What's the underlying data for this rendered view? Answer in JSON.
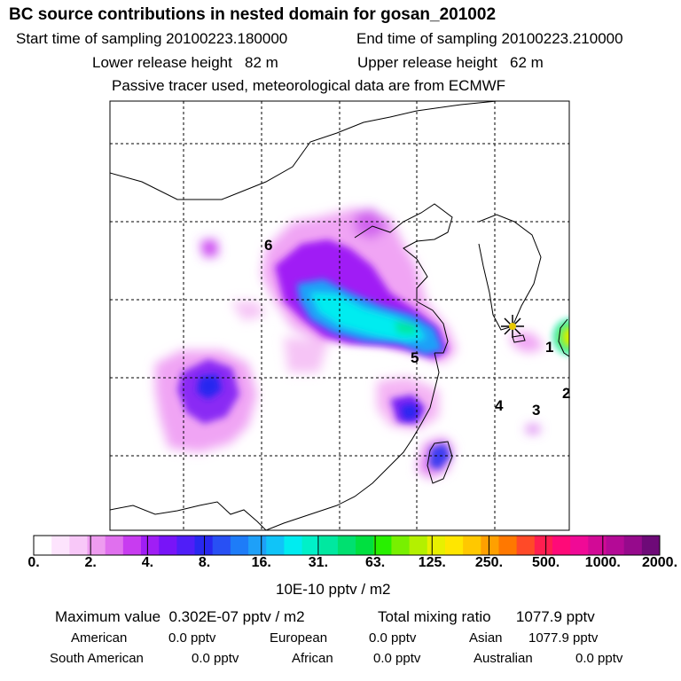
{
  "header": {
    "title": "BC  source contributions in nested domain for gosan_201002",
    "start_label": "Start time of sampling",
    "start_value": "20100223.180000",
    "end_label": "End time of sampling",
    "end_value": "20100223.210000",
    "lower_label": "Lower release height",
    "lower_value": "82 m",
    "upper_label": "Upper release height",
    "upper_value": "62 m",
    "passive_note": "Passive tracer used, meteorological data are from ECMWF"
  },
  "map": {
    "region_labels": [
      "1",
      "2",
      "3",
      "4",
      "5",
      "6"
    ],
    "receptor_marker": "star"
  },
  "colorbar": {
    "colors": [
      "#ffffff",
      "#fde4fd",
      "#f8c8f8",
      "#ee9cf0",
      "#e070ee",
      "#c83cf0",
      "#a01ef5",
      "#7814f8",
      "#501ef8",
      "#2828f0",
      "#2850f4",
      "#1e7cf8",
      "#1ea0f8",
      "#10c4f8",
      "#00ecf0",
      "#00f0c8",
      "#00e8a0",
      "#00e070",
      "#00e040",
      "#28f000",
      "#78f000",
      "#b4f000",
      "#e8f000",
      "#ffe600",
      "#ffc800",
      "#ffa000",
      "#ff7800",
      "#ff4a28",
      "#ff1e50",
      "#ff0a78",
      "#f00a96",
      "#d20a96",
      "#b40a96",
      "#960a8c",
      "#6e0a78"
    ],
    "tick_labels": [
      "0.",
      "2.",
      "4.",
      "8.",
      "16.",
      "31.",
      "63.",
      "125.",
      "250.",
      "500.",
      "1000.",
      "2000."
    ],
    "units": "10E-10 pptv / m2"
  },
  "chart_data": {
    "type": "heatmap",
    "title": "BC  source contributions in nested domain for gosan_201002",
    "color_scale": [
      0,
      2,
      4,
      8,
      16,
      31,
      63,
      125,
      250,
      500,
      1000,
      2000
    ],
    "units": "10E-10 pptv / m2",
    "maximum_value": "0.302E-07 pptv / m2",
    "grid": true
  },
  "stats": {
    "max_label": "Maximum value",
    "max_value": "0.302E-07 pptv / m2",
    "total_label": "Total mixing ratio",
    "total_value": "1077.9 pptv",
    "american_label": "American",
    "american_value": "0.0 pptv",
    "european_label": "European",
    "european_value": "0.0 pptv",
    "asian_label": "Asian",
    "asian_value": "1077.9 pptv",
    "south_american_label": "South American",
    "south_american_value": "0.0 pptv",
    "african_label": "African",
    "african_value": "0.0 pptv",
    "australian_label": "Australian",
    "australian_value": "0.0 pptv"
  }
}
